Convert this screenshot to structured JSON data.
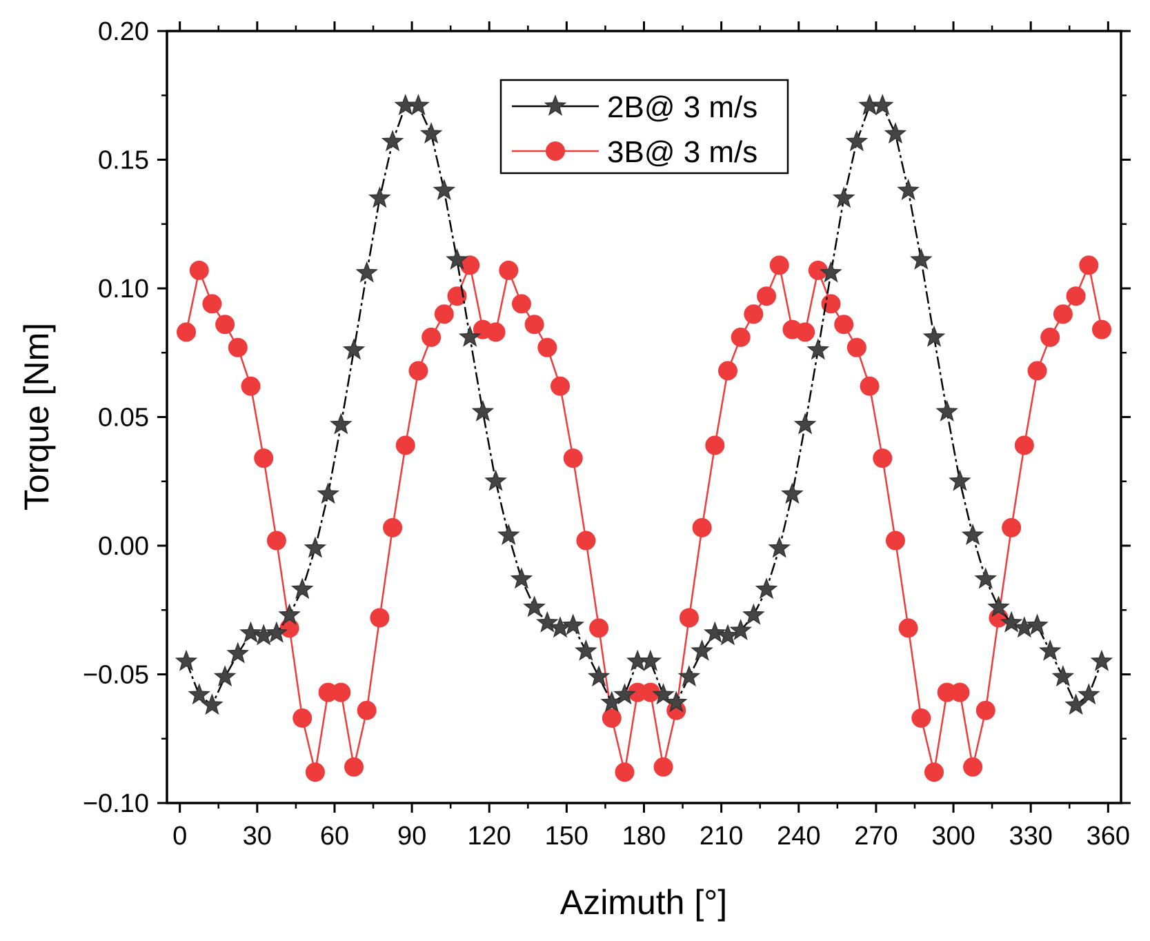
{
  "chart_data": {
    "type": "line",
    "title": "",
    "xlabel": "Azimuth [°]",
    "ylabel": "Torque [Nm]",
    "xlim": [
      -5,
      365
    ],
    "ylim": [
      -0.1,
      0.2
    ],
    "xticks": [
      0,
      30,
      60,
      90,
      120,
      150,
      180,
      210,
      240,
      270,
      300,
      330,
      360
    ],
    "xtick_labels": [
      "0",
      "30",
      "60",
      "90",
      "120",
      "150",
      "180",
      "210",
      "240",
      "270",
      "300",
      "330",
      "360"
    ],
    "yticks": [
      -0.1,
      -0.05,
      0.0,
      0.05,
      0.1,
      0.15,
      0.2
    ],
    "ytick_labels": [
      "−0.10",
      "−0.05",
      "0.00",
      "0.05",
      "0.10",
      "0.15",
      "0.20"
    ],
    "legend_position": "top-center",
    "x": [
      2.5,
      7.5,
      12.5,
      17.5,
      22.5,
      27.5,
      32.5,
      37.5,
      42.5,
      47.5,
      52.5,
      57.5,
      62.5,
      67.5,
      72.5,
      77.5,
      82.5,
      87.5,
      92.5,
      97.5,
      102.5,
      107.5,
      112.5,
      117.5,
      122.5,
      127.5,
      132.5,
      137.5,
      142.5,
      147.5,
      152.5,
      157.5,
      162.5,
      167.5,
      172.5,
      177.5,
      182.5,
      187.5,
      192.5,
      197.5,
      202.5,
      207.5,
      212.5,
      217.5,
      222.5,
      227.5,
      232.5,
      237.5,
      242.5,
      247.5,
      252.5,
      257.5,
      262.5,
      267.5,
      272.5,
      277.5,
      282.5,
      287.5,
      292.5,
      297.5,
      302.5,
      307.5,
      312.5,
      317.5,
      322.5,
      327.5,
      332.5,
      337.5,
      342.5,
      347.5,
      352.5,
      357.5
    ],
    "series": [
      {
        "name": "2B@ 3 m/s",
        "color": "#333333",
        "marker": "star",
        "values": [
          -0.045,
          -0.058,
          -0.062,
          -0.051,
          -0.042,
          -0.034,
          -0.035,
          -0.034,
          -0.027,
          -0.017,
          -0.001,
          0.02,
          0.047,
          0.076,
          0.106,
          0.135,
          0.157,
          0.171,
          0.171,
          0.16,
          0.138,
          0.111,
          0.081,
          0.052,
          0.025,
          0.004,
          -0.013,
          -0.024,
          -0.03,
          -0.032,
          -0.031,
          -0.041,
          -0.051,
          -0.061,
          -0.058,
          -0.045,
          -0.045,
          -0.058,
          -0.061,
          -0.051,
          -0.041,
          -0.034,
          -0.035,
          -0.033,
          -0.027,
          -0.017,
          -0.001,
          0.02,
          0.047,
          0.076,
          0.106,
          0.135,
          0.157,
          0.171,
          0.171,
          0.16,
          0.138,
          0.111,
          0.081,
          0.052,
          0.025,
          0.004,
          -0.013,
          -0.024,
          -0.03,
          -0.032,
          -0.031,
          -0.041,
          -0.051,
          -0.062,
          -0.058,
          -0.045
        ]
      },
      {
        "name": "3B@ 3 m/s",
        "color": "#ee3b3b",
        "marker": "circle",
        "values": [
          0.083,
          0.107,
          0.094,
          0.086,
          0.077,
          0.062,
          0.034,
          0.002,
          -0.032,
          -0.067,
          -0.088,
          -0.057,
          -0.057,
          -0.086,
          -0.064,
          -0.028,
          0.007,
          0.039,
          0.068,
          0.081,
          0.09,
          0.097,
          0.109,
          0.084,
          0.083,
          0.107,
          0.094,
          0.086,
          0.077,
          0.062,
          0.034,
          0.002,
          -0.032,
          -0.067,
          -0.088,
          -0.057,
          -0.057,
          -0.086,
          -0.064,
          -0.028,
          0.007,
          0.039,
          0.068,
          0.081,
          0.09,
          0.097,
          0.109,
          0.084,
          0.083,
          0.107,
          0.094,
          0.086,
          0.077,
          0.062,
          0.034,
          0.002,
          -0.032,
          -0.067,
          -0.088,
          -0.057,
          -0.057,
          -0.086,
          -0.064,
          -0.028,
          0.007,
          0.039,
          0.068,
          0.081,
          0.09,
          0.097,
          0.109,
          0.084
        ]
      }
    ]
  }
}
